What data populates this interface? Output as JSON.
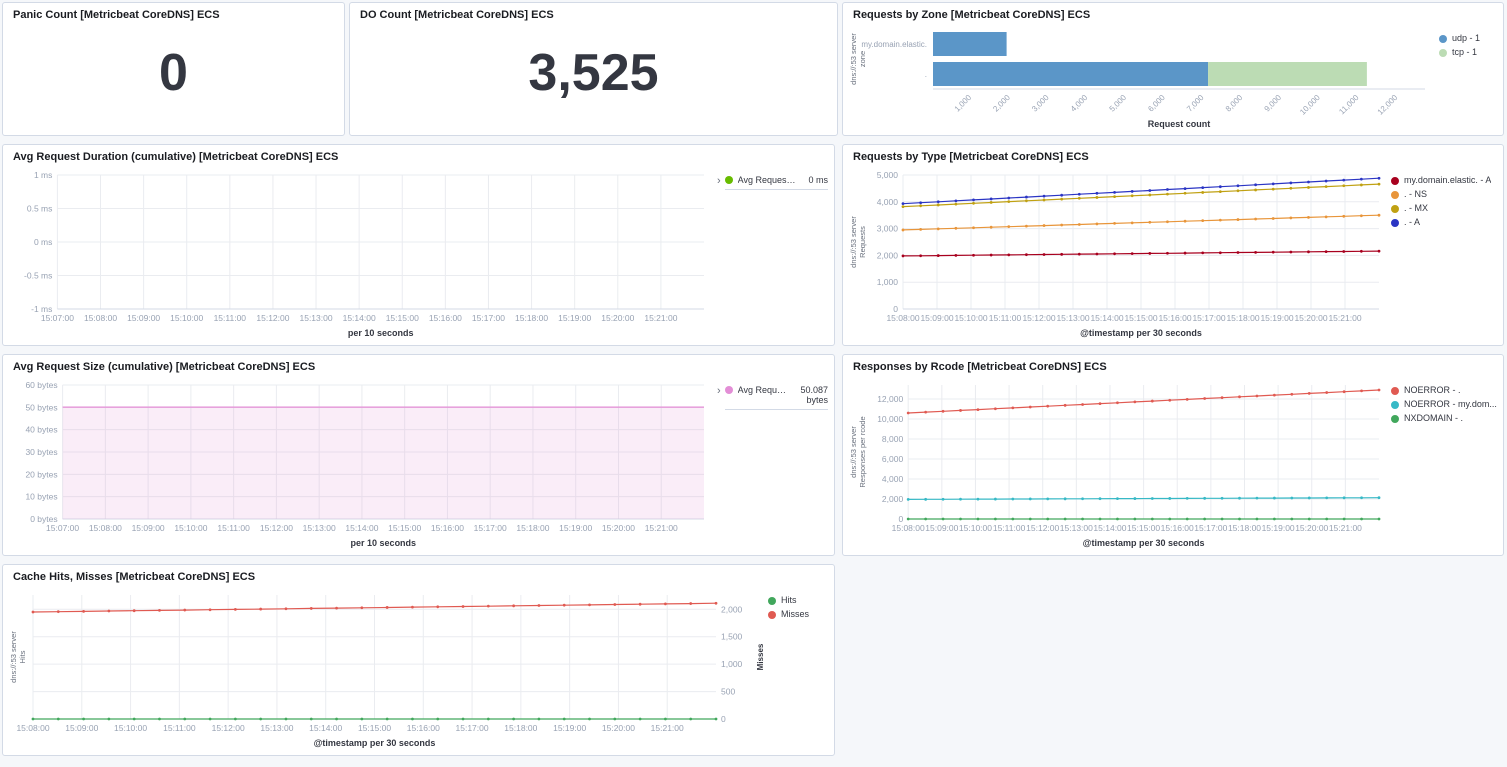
{
  "app": {
    "background": "#F5F7FA",
    "panel_background": "#FFFFFF",
    "panel_border": "#D3DAE6"
  },
  "metrics": {
    "panic": {
      "title": "Panic Count [Metricbeat CoreDNS] ECS",
      "value": "0"
    },
    "do": {
      "title": "DO Count [Metricbeat CoreDNS] ECS",
      "value": "3,525"
    }
  },
  "chart_data": [
    {
      "id": "requests-by-zone",
      "type": "bar",
      "orientation": "horizontal",
      "title": "Requests by Zone [Metricbeat CoreDNS] ECS",
      "categories": [
        "my.domain.elastic.",
        "."
      ],
      "ylabel_lines": [
        "dns://:53 server",
        "zone"
      ],
      "xlabel": "Request count",
      "xlim": [
        0,
        12700
      ],
      "x_ticks": [
        {
          "v": 1000,
          "label": "1,000"
        },
        {
          "v": 2000,
          "label": "2,000"
        },
        {
          "v": 3000,
          "label": "3,000"
        },
        {
          "v": 4000,
          "label": "4,000"
        },
        {
          "v": 5000,
          "label": "5,000"
        },
        {
          "v": 6000,
          "label": "6,000"
        },
        {
          "v": 7000,
          "label": "7,000"
        },
        {
          "v": 8000,
          "label": "8,000"
        },
        {
          "v": 9000,
          "label": "9,000"
        },
        {
          "v": 10000,
          "label": "10,000"
        },
        {
          "v": 11000,
          "label": "11,000"
        },
        {
          "v": 12000,
          "label": "12,000"
        }
      ],
      "series": [
        {
          "name": "udp - 1",
          "color": "#5B96C8",
          "values": [
            1900,
            7100
          ]
        },
        {
          "name": "tcp - 1",
          "color": "#BCDCB4",
          "values": [
            0,
            4100
          ]
        }
      ],
      "legend_style": "simple",
      "legend_position": "right"
    },
    {
      "id": "avg-request-duration",
      "type": "line",
      "title": "Avg Request Duration (cumulative) [Metricbeat CoreDNS] ECS",
      "xlabel": "per 10 seconds",
      "x_ticks": [
        "15:07:00",
        "15:08:00",
        "15:09:00",
        "15:10:00",
        "15:11:00",
        "15:12:00",
        "15:13:00",
        "15:14:00",
        "15:15:00",
        "15:16:00",
        "15:17:00",
        "15:18:00",
        "15:19:00",
        "15:20:00",
        "15:21:00"
      ],
      "ylim": [
        -1,
        1
      ],
      "grid": true,
      "y_ticks": [
        {
          "v": 1,
          "label": "1 ms"
        },
        {
          "v": 0.5,
          "label": "0.5 ms"
        },
        {
          "v": 0,
          "label": "0 ms"
        },
        {
          "v": -0.5,
          "label": "-0.5 ms"
        },
        {
          "v": -1,
          "label": "-1 ms"
        }
      ],
      "series": [
        {
          "name": "Avg Request Dura...",
          "color": "#68BC00",
          "values": [],
          "legend_value": "0 ms"
        }
      ],
      "legend_style": "value",
      "legend_position": "right"
    },
    {
      "id": "requests-by-type",
      "type": "line",
      "title": "Requests by Type [Metricbeat CoreDNS] ECS",
      "xlabel": "@timestamp per 30 seconds",
      "ylabel_lines": [
        "dns://:53 server",
        "Requests"
      ],
      "x_ticks": [
        "15:08:00",
        "15:09:00",
        "15:10:00",
        "15:11:00",
        "15:12:00",
        "15:13:00",
        "15:14:00",
        "15:15:00",
        "15:16:00",
        "15:17:00",
        "15:18:00",
        "15:19:00",
        "15:20:00",
        "15:21:00"
      ],
      "ylim": [
        0,
        5000
      ],
      "grid": true,
      "markers": true,
      "y_ticks": [
        {
          "v": 0,
          "label": "0"
        },
        {
          "v": 1000,
          "label": "1,000"
        },
        {
          "v": 2000,
          "label": "2,000"
        },
        {
          "v": 3000,
          "label": "3,000"
        },
        {
          "v": 4000,
          "label": "4,000"
        },
        {
          "v": 5000,
          "label": "5,000"
        }
      ],
      "series": [
        {
          "name": "my.domain.elastic. - A",
          "color": "#A8001E",
          "values": [
            1980,
            2160
          ]
        },
        {
          "name": ". - NS",
          "color": "#E8953A",
          "values": [
            2950,
            3500
          ]
        },
        {
          "name": ". - MX",
          "color": "#C0A112",
          "values": [
            3820,
            4660
          ]
        },
        {
          "name": ". - A",
          "color": "#2B35C4",
          "values": [
            3930,
            4880
          ]
        }
      ],
      "legend_style": "simple",
      "legend_position": "right"
    },
    {
      "id": "avg-request-size",
      "type": "line",
      "title": "Avg Request Size (cumulative) [Metricbeat CoreDNS] ECS",
      "xlabel": "per 10 seconds",
      "x_ticks": [
        "15:07:00",
        "15:08:00",
        "15:09:00",
        "15:10:00",
        "15:11:00",
        "15:12:00",
        "15:13:00",
        "15:14:00",
        "15:15:00",
        "15:16:00",
        "15:17:00",
        "15:18:00",
        "15:19:00",
        "15:20:00",
        "15:21:00"
      ],
      "ylim": [
        0,
        60
      ],
      "grid": true,
      "y_ticks": [
        {
          "v": 0,
          "label": "0 bytes"
        },
        {
          "v": 10,
          "label": "10 bytes"
        },
        {
          "v": 20,
          "label": "20 bytes"
        },
        {
          "v": 30,
          "label": "30 bytes"
        },
        {
          "v": 40,
          "label": "40 bytes"
        },
        {
          "v": 50,
          "label": "50 bytes"
        },
        {
          "v": 60,
          "label": "60 bytes"
        }
      ],
      "series": [
        {
          "name": "Avg Request ...",
          "color": "#E38ED6",
          "values": [
            50.087,
            50.087
          ],
          "fill": true,
          "fill_opacity": 0.16,
          "legend_value": "50.087 bytes"
        }
      ],
      "legend_style": "value",
      "legend_position": "right"
    },
    {
      "id": "responses-by-rcode",
      "type": "line",
      "title": "Responses by Rcode [Metricbeat CoreDNS] ECS",
      "xlabel": "@timestamp per 30 seconds",
      "ylabel_lines": [
        "dns://:53 server",
        "Responses per rcode"
      ],
      "x_ticks": [
        "15:08:00",
        "15:09:00",
        "15:10:00",
        "15:11:00",
        "15:12:00",
        "15:13:00",
        "15:14:00",
        "15:15:00",
        "15:16:00",
        "15:17:00",
        "15:18:00",
        "15:19:00",
        "15:20:00",
        "15:21:00"
      ],
      "ylim": [
        0,
        13400
      ],
      "grid": true,
      "markers": true,
      "y_ticks": [
        {
          "v": 0,
          "label": "0"
        },
        {
          "v": 2000,
          "label": "2,000"
        },
        {
          "v": 4000,
          "label": "4,000"
        },
        {
          "v": 6000,
          "label": "6,000"
        },
        {
          "v": 8000,
          "label": "8,000"
        },
        {
          "v": 10000,
          "label": "10,000"
        },
        {
          "v": 12000,
          "label": "12,000"
        }
      ],
      "series": [
        {
          "name": "NOERROR - .",
          "color": "#E05A52",
          "values": [
            10600,
            12900
          ]
        },
        {
          "name": "NOERROR - my.dom...",
          "color": "#37B9C6",
          "values": [
            1960,
            2130
          ]
        },
        {
          "name": "NXDOMAIN - .",
          "color": "#41A75C",
          "values": [
            0,
            0
          ]
        }
      ],
      "legend_style": "simple",
      "legend_position": "right"
    },
    {
      "id": "cache-hits-misses",
      "type": "line",
      "title": "Cache Hits, Misses [Metricbeat CoreDNS] ECS",
      "xlabel": "@timestamp per 30 seconds",
      "ylabel_lines": [
        "dns://:53 server",
        "Hits"
      ],
      "ylabel_right": "Misses",
      "y_axis_side": "right",
      "x_ticks": [
        "15:08:00",
        "15:09:00",
        "15:10:00",
        "15:11:00",
        "15:12:00",
        "15:13:00",
        "15:14:00",
        "15:15:00",
        "15:16:00",
        "15:17:00",
        "15:18:00",
        "15:19:00",
        "15:20:00",
        "15:21:00"
      ],
      "ylim": [
        0,
        2260
      ],
      "grid": true,
      "markers": true,
      "y_ticks": [
        {
          "v": 0,
          "label": "0"
        },
        {
          "v": 500,
          "label": "500"
        },
        {
          "v": 1000,
          "label": "1,000"
        },
        {
          "v": 1500,
          "label": "1,500"
        },
        {
          "v": 2000,
          "label": "2,000"
        }
      ],
      "series": [
        {
          "name": "Hits",
          "color": "#41A75C",
          "values": [
            0,
            0
          ]
        },
        {
          "name": "Misses",
          "color": "#E05A52",
          "values": [
            1950,
            2110
          ]
        }
      ],
      "legend_style": "simple",
      "legend_position": "right"
    }
  ]
}
